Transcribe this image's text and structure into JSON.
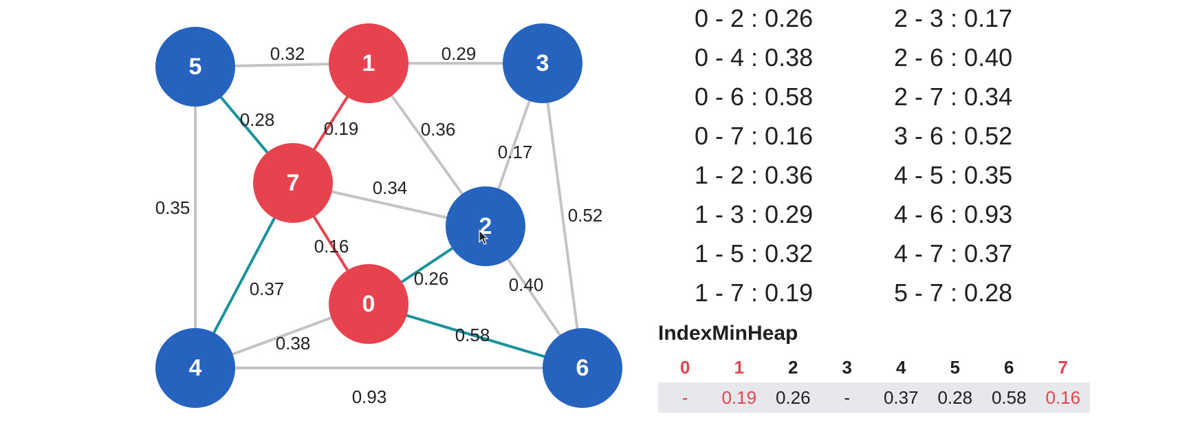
{
  "graph": {
    "nodes": [
      {
        "id": "0",
        "in_tree": true
      },
      {
        "id": "1",
        "in_tree": true
      },
      {
        "id": "2",
        "in_tree": false
      },
      {
        "id": "3",
        "in_tree": false
      },
      {
        "id": "4",
        "in_tree": false
      },
      {
        "id": "5",
        "in_tree": false
      },
      {
        "id": "6",
        "in_tree": false
      },
      {
        "id": "7",
        "in_tree": true
      }
    ],
    "edges": [
      {
        "u": "5",
        "v": "1",
        "w": "0.32",
        "state": "normal"
      },
      {
        "u": "1",
        "v": "3",
        "w": "0.29",
        "state": "normal"
      },
      {
        "u": "5",
        "v": "7",
        "w": "0.28",
        "state": "crossing"
      },
      {
        "u": "1",
        "v": "7",
        "w": "0.19",
        "state": "tree"
      },
      {
        "u": "1",
        "v": "2",
        "w": "0.36",
        "state": "normal"
      },
      {
        "u": "3",
        "v": "2",
        "w": "0.17",
        "state": "normal"
      },
      {
        "u": "3",
        "v": "6",
        "w": "0.52",
        "state": "normal"
      },
      {
        "u": "5",
        "v": "4",
        "w": "0.35",
        "state": "normal"
      },
      {
        "u": "7",
        "v": "2",
        "w": "0.34",
        "state": "normal"
      },
      {
        "u": "7",
        "v": "0",
        "w": "0.16",
        "state": "tree"
      },
      {
        "u": "7",
        "v": "4",
        "w": "0.37",
        "state": "crossing"
      },
      {
        "u": "0",
        "v": "2",
        "w": "0.26",
        "state": "crossing"
      },
      {
        "u": "2",
        "v": "6",
        "w": "0.40",
        "state": "normal"
      },
      {
        "u": "4",
        "v": "0",
        "w": "0.38",
        "state": "normal"
      },
      {
        "u": "0",
        "v": "6",
        "w": "0.58",
        "state": "crossing"
      },
      {
        "u": "4",
        "v": "6",
        "w": "0.93",
        "state": "normal"
      }
    ]
  },
  "edge_list": {
    "left": [
      "0 - 2 : 0.26",
      "0 - 4 : 0.38",
      "0 - 6 : 0.58",
      "0 - 7 : 0.16",
      "1 - 2 : 0.36",
      "1 - 3 : 0.29",
      "1 - 5 : 0.32",
      "1 - 7 : 0.19"
    ],
    "right": [
      "2 - 3 : 0.17",
      "2 - 6 : 0.40",
      "2 - 7 : 0.34",
      "3 - 6 : 0.52",
      "4 - 5 : 0.35",
      "4 - 6 : 0.93",
      "4 - 7 : 0.37",
      "5 - 7 : 0.28"
    ]
  },
  "heap": {
    "title": "IndexMinHeap",
    "indices": [
      "0",
      "1",
      "2",
      "3",
      "4",
      "5",
      "6",
      "7"
    ],
    "values": [
      "-",
      "0.19",
      "0.26",
      "-",
      "0.37",
      "0.28",
      "0.58",
      "0.16"
    ],
    "highlighted": [
      true,
      true,
      false,
      false,
      false,
      false,
      false,
      true
    ]
  },
  "colors": {
    "tree_node": "#e6434f",
    "other_node": "#2563bf",
    "tree_edge": "#e6434f",
    "crossing_edge": "#1a929c",
    "normal_edge": "#c4c4c4",
    "highlight_text": "#e04550"
  }
}
